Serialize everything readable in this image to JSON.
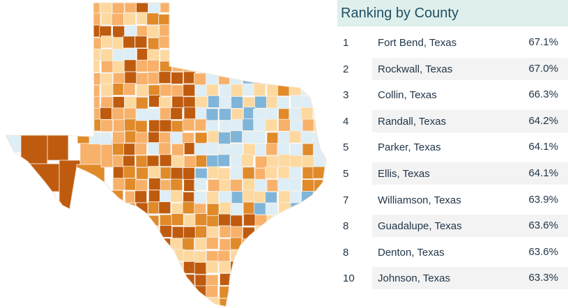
{
  "panel": {
    "title": "Ranking by County"
  },
  "rankings": [
    {
      "rank": "1",
      "county": "Fort Bend, Texas",
      "value": "67.1%"
    },
    {
      "rank": "2",
      "county": "Rockwall, Texas",
      "value": "67.0%"
    },
    {
      "rank": "3",
      "county": "Collin, Texas",
      "value": "66.3%"
    },
    {
      "rank": "4",
      "county": "Randall, Texas",
      "value": "64.2%"
    },
    {
      "rank": "5",
      "county": "Parker, Texas",
      "value": "64.1%"
    },
    {
      "rank": "5",
      "county": "Ellis, Texas",
      "value": "64.1%"
    },
    {
      "rank": "7",
      "county": "Williamson, Texas",
      "value": "63.9%"
    },
    {
      "rank": "8",
      "county": "Guadalupe, Texas",
      "value": "63.6%"
    },
    {
      "rank": "8",
      "county": "Denton, Texas",
      "value": "63.6%"
    },
    {
      "rank": "10",
      "county": "Johnson, Texas",
      "value": "63.3%"
    }
  ],
  "map": {
    "region": "texas-counties",
    "color_scale": [
      "#bf5b0f",
      "#e08a2a",
      "#f8b16a",
      "#fdd9a0",
      "#ddeef6",
      "#7fb5d9"
    ]
  }
}
